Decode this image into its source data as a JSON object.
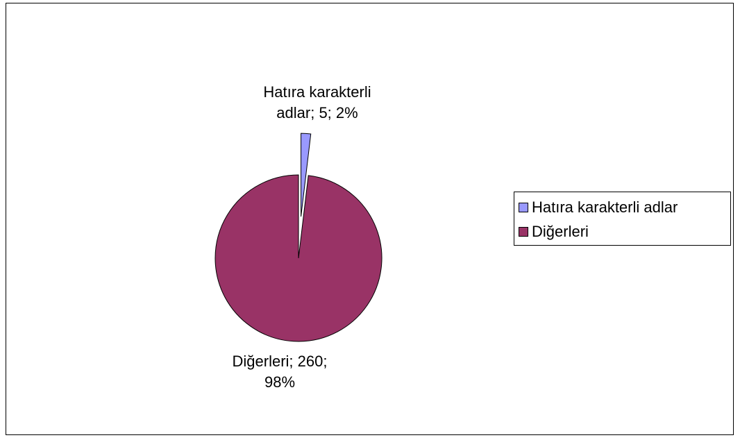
{
  "chart_data": {
    "type": "pie",
    "categories": [
      "Hatıra karakterli adlar",
      "Diğerleri"
    ],
    "values": [
      5,
      260
    ],
    "value_labels": [
      "Hatıra karakterli adlar; 5; 2%",
      "Diğerleri; 260; 98%"
    ],
    "colors": [
      "#9999ff",
      "#993366"
    ],
    "explode": [
      true,
      false
    ],
    "legend": "right"
  }
}
